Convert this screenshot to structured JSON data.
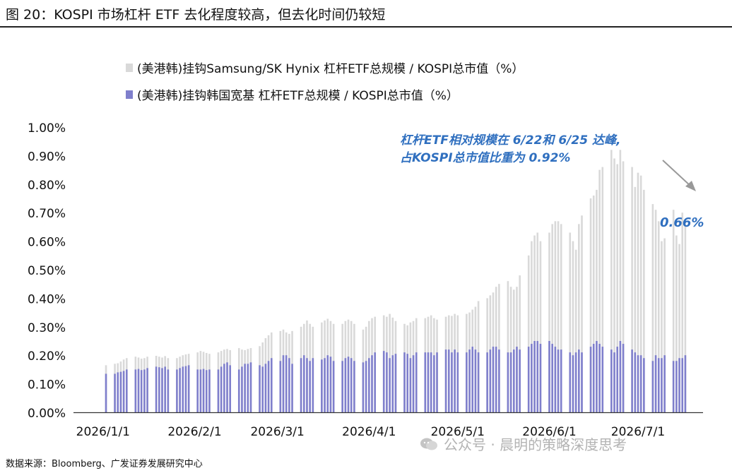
{
  "title": "图 20：KOSPI 市场杠杆 ETF 去化程度较高，但去化时间仍较短",
  "source": "数据来源：Bloomberg、广发证券发展研究中心",
  "watermark": {
    "text": "公众号 · 晨明的策略深度思考",
    "icon": "wechat-icon"
  },
  "annotations": {
    "peak_line1": "杠杆ETF相对规模在 6/22和 6/25 达峰,",
    "peak_line2": "占KOSPI总市值比重为 0.92%",
    "latest_value": "0.66%",
    "arrow": "arrow-down-right-icon"
  },
  "colors": {
    "light": "#d9d9d9",
    "dark": "#7f7fcc",
    "annotation": "#2f6fbf",
    "arrow": "#999999"
  },
  "chart_data": {
    "type": "bar",
    "bar_mode": "overlay",
    "ylim": [
      0,
      0.01
    ],
    "ytick_values": [
      0,
      0.001,
      0.002,
      0.003,
      0.004,
      0.005,
      0.006,
      0.007,
      0.008,
      0.009,
      0.01
    ],
    "ytick_labels": [
      "0.00%",
      "0.10%",
      "0.20%",
      "0.30%",
      "0.40%",
      "0.50%",
      "0.60%",
      "0.70%",
      "0.80%",
      "0.90%",
      "1.00%"
    ],
    "xtick_labels": [
      "2026/1/1",
      "2026/2/1",
      "2026/3/1",
      "2026/4/1",
      "2026/5/1",
      "2026/6/1",
      "2026/7/1"
    ],
    "xtick_dates": [
      "2026-01-01",
      "2026-02-01",
      "2026-03-01",
      "2026-04-01",
      "2026-05-01",
      "2026-06-01",
      "2026-07-01"
    ],
    "x": [
      "2026-01-02",
      "2026-01-05",
      "2026-01-06",
      "2026-01-07",
      "2026-01-08",
      "2026-01-09",
      "2026-01-12",
      "2026-01-13",
      "2026-01-14",
      "2026-01-15",
      "2026-01-16",
      "2026-01-19",
      "2026-01-20",
      "2026-01-21",
      "2026-01-22",
      "2026-01-23",
      "2026-01-26",
      "2026-01-27",
      "2026-01-28",
      "2026-01-29",
      "2026-01-30",
      "2026-02-02",
      "2026-02-03",
      "2026-02-04",
      "2026-02-05",
      "2026-02-06",
      "2026-02-09",
      "2026-02-10",
      "2026-02-11",
      "2026-02-12",
      "2026-02-13",
      "2026-02-16",
      "2026-02-17",
      "2026-02-18",
      "2026-02-19",
      "2026-02-20",
      "2026-02-23",
      "2026-02-24",
      "2026-02-25",
      "2026-02-26",
      "2026-02-27",
      "2026-03-02",
      "2026-03-03",
      "2026-03-04",
      "2026-03-05",
      "2026-03-06",
      "2026-03-09",
      "2026-03-10",
      "2026-03-11",
      "2026-03-12",
      "2026-03-13",
      "2026-03-16",
      "2026-03-17",
      "2026-03-18",
      "2026-03-19",
      "2026-03-20",
      "2026-03-23",
      "2026-03-24",
      "2026-03-25",
      "2026-03-26",
      "2026-03-27",
      "2026-03-30",
      "2026-03-31",
      "2026-04-01",
      "2026-04-02",
      "2026-04-03",
      "2026-04-06",
      "2026-04-07",
      "2026-04-08",
      "2026-04-09",
      "2026-04-10",
      "2026-04-13",
      "2026-04-14",
      "2026-04-15",
      "2026-04-16",
      "2026-04-17",
      "2026-04-20",
      "2026-04-21",
      "2026-04-22",
      "2026-04-23",
      "2026-04-24",
      "2026-04-27",
      "2026-04-28",
      "2026-04-29",
      "2026-04-30",
      "2026-05-01",
      "2026-05-04",
      "2026-05-05",
      "2026-05-06",
      "2026-05-07",
      "2026-05-08",
      "2026-05-11",
      "2026-05-12",
      "2026-05-13",
      "2026-05-14",
      "2026-05-15",
      "2026-05-18",
      "2026-05-19",
      "2026-05-20",
      "2026-05-21",
      "2026-05-22",
      "2026-05-25",
      "2026-05-26",
      "2026-05-27",
      "2026-05-28",
      "2026-05-29",
      "2026-06-01",
      "2026-06-02",
      "2026-06-03",
      "2026-06-04",
      "2026-06-05",
      "2026-06-08",
      "2026-06-09",
      "2026-06-10",
      "2026-06-11",
      "2026-06-12",
      "2026-06-15",
      "2026-06-16",
      "2026-06-17",
      "2026-06-18",
      "2026-06-19",
      "2026-06-22",
      "2026-06-23",
      "2026-06-24",
      "2026-06-25",
      "2026-06-26",
      "2026-06-29",
      "2026-06-30",
      "2026-07-01",
      "2026-07-02",
      "2026-07-03",
      "2026-07-06",
      "2026-07-07",
      "2026-07-08",
      "2026-07-09",
      "2026-07-10",
      "2026-07-13",
      "2026-07-14",
      "2026-07-15",
      "2026-07-16",
      "2026-07-17"
    ],
    "series": [
      {
        "name": "(美港韩)挂钩Samsung/SK Hynix 杠杆ETF总规模 / KOSPI总市值（%）",
        "values": [
          0.00165,
          0.0017,
          0.00172,
          0.00178,
          0.00185,
          0.0019,
          0.00195,
          0.00192,
          0.00188,
          0.0019,
          0.00195,
          0.00198,
          0.00195,
          0.00192,
          0.00197,
          0.0019,
          0.0019,
          0.00195,
          0.002,
          0.00203,
          0.00205,
          0.0021,
          0.00215,
          0.00212,
          0.00208,
          0.00205,
          0.0021,
          0.00215,
          0.0022,
          0.00222,
          0.00218,
          0.00225,
          0.0022,
          0.00218,
          0.00222,
          0.00225,
          0.00232,
          0.00245,
          0.0026,
          0.0027,
          0.0028,
          0.00285,
          0.0029,
          0.0028,
          0.00275,
          0.00285,
          0.003,
          0.0031,
          0.00322,
          0.0031,
          0.003,
          0.00315,
          0.00322,
          0.00328,
          0.0032,
          0.0031,
          0.0031,
          0.0032,
          0.00325,
          0.0032,
          0.0031,
          0.0029,
          0.003,
          0.0032,
          0.0033,
          0.00335,
          0.0034,
          0.00335,
          0.00345,
          0.00332,
          0.0032,
          0.0031,
          0.00305,
          0.00315,
          0.0032,
          0.0033,
          0.0033,
          0.00335,
          0.0034,
          0.0033,
          0.00325,
          0.00335,
          0.0034,
          0.00338,
          0.00345,
          0.0034,
          0.00345,
          0.0035,
          0.0036,
          0.0037,
          0.0039,
          0.004,
          0.0041,
          0.0042,
          0.0044,
          0.0045,
          0.0046,
          0.0044,
          0.0043,
          0.0044,
          0.0048,
          0.0055,
          0.006,
          0.0062,
          0.0063,
          0.006,
          0.0063,
          0.0066,
          0.0067,
          0.0067,
          0.0066,
          0.0063,
          0.006,
          0.0057,
          0.0066,
          0.0069,
          0.0075,
          0.0076,
          0.0078,
          0.0085,
          0.0086,
          0.0092,
          0.0089,
          0.0087,
          0.0092,
          0.0088,
          0.0086,
          0.0079,
          0.0084,
          0.0083,
          0.0078,
          0.0073,
          0.0071,
          0.0067,
          0.006,
          0.0061,
          0.0071,
          0.0062,
          0.0059,
          0.007,
          0.0066
        ]
      },
      {
        "name": "(美港韩)挂钩韩国宽基 杠杆ETF总规模 / KOSPI总市值（%）",
        "values": [
          0.00135,
          0.00135,
          0.0014,
          0.00142,
          0.00145,
          0.0015,
          0.0015,
          0.00152,
          0.00148,
          0.0015,
          0.00155,
          0.0016,
          0.00158,
          0.00155,
          0.0016,
          0.0015,
          0.0015,
          0.00155,
          0.0016,
          0.00162,
          0.00165,
          0.0015,
          0.0015,
          0.00152,
          0.00148,
          0.0015,
          0.0015,
          0.0016,
          0.0017,
          0.00175,
          0.00165,
          0.0015,
          0.0016,
          0.0017,
          0.0017,
          0.00175,
          0.00165,
          0.0016,
          0.0017,
          0.0018,
          0.0019,
          0.0018,
          0.002,
          0.002,
          0.0019,
          0.0017,
          0.0019,
          0.002,
          0.0019,
          0.0018,
          0.0019,
          0.00185,
          0.0019,
          0.002,
          0.00195,
          0.0018,
          0.0018,
          0.0019,
          0.00195,
          0.0019,
          0.0018,
          0.00175,
          0.0018,
          0.0019,
          0.002,
          0.0021,
          0.00215,
          0.0021,
          0.0019,
          0.002,
          0.00205,
          0.0021,
          0.00205,
          0.0019,
          0.002,
          0.0021,
          0.0021,
          0.0021,
          0.0021,
          0.002,
          0.0021,
          0.0022,
          0.0022,
          0.0021,
          0.0022,
          0.0021,
          0.0021,
          0.0022,
          0.0023,
          0.0022,
          0.0021,
          0.0021,
          0.0022,
          0.0023,
          0.0023,
          0.0022,
          0.0021,
          0.0021,
          0.0022,
          0.0023,
          0.0022,
          0.0023,
          0.0024,
          0.0025,
          0.0025,
          0.0024,
          0.0025,
          0.0024,
          0.0023,
          0.0022,
          0.0022,
          0.0021,
          0.002,
          0.0021,
          0.0022,
          0.0021,
          0.0023,
          0.0024,
          0.0025,
          0.0024,
          0.0023,
          0.0022,
          0.0021,
          0.0023,
          0.0025,
          0.0024,
          0.0022,
          0.0021,
          0.002,
          0.002,
          0.0019,
          0.0018,
          0.002,
          0.0019,
          0.0019,
          0.002,
          0.0018,
          0.0018,
          0.0019,
          0.0019,
          0.002
        ]
      }
    ]
  }
}
